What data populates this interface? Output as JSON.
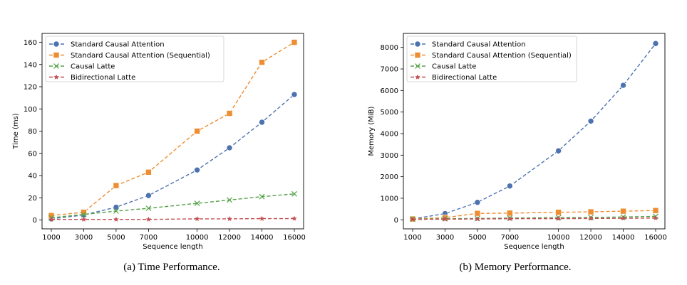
{
  "chart_data": [
    {
      "type": "line",
      "id": "a",
      "title": "",
      "caption": "(a) Time Performance.",
      "xlabel": "Sequence length",
      "ylabel": "Time (ms)",
      "x": [
        1000,
        3000,
        5000,
        7000,
        10000,
        12000,
        14000,
        16000
      ],
      "xticks": [
        "1000",
        "3000",
        "5000",
        "7000",
        "10000",
        "12000",
        "14000",
        "16000"
      ],
      "yticks": [
        0,
        20,
        40,
        60,
        80,
        100,
        120,
        140,
        160
      ],
      "ylim": [
        -8,
        168
      ],
      "xlim": [
        0,
        17000
      ],
      "grid": false,
      "legend_position": "top-left",
      "series": [
        {
          "name": "Standard Causal Attention",
          "color": "#4c72b0",
          "marker": "circle",
          "values": [
            1,
            4.5,
            11.5,
            22,
            45,
            65,
            88,
            113
          ]
        },
        {
          "name": "Standard Causal Attention (Sequential)",
          "color": "#ee8e32",
          "marker": "square",
          "values": [
            4,
            7,
            31,
            43,
            80,
            96,
            142,
            160
          ]
        },
        {
          "name": "Causal Latte",
          "color": "#55a148",
          "marker": "x",
          "values": [
            2,
            5,
            8,
            10.5,
            15,
            18,
            21,
            23.5
          ]
        },
        {
          "name": "Bidirectional Latte",
          "color": "#c44e52",
          "marker": "star",
          "values": [
            0.5,
            0.5,
            0.5,
            0.5,
            1,
            1,
            1.2,
            1.3
          ]
        }
      ]
    },
    {
      "type": "line",
      "id": "b",
      "title": "",
      "caption": "(b) Memory Performance.",
      "xlabel": "Sequence length",
      "ylabel": "Memory (MiB)",
      "x": [
        1000,
        3000,
        5000,
        7000,
        10000,
        12000,
        14000,
        16000
      ],
      "xticks": [
        "1000",
        "3000",
        "5000",
        "7000",
        "10000",
        "12000",
        "14000",
        "16000"
      ],
      "yticks": [
        0,
        1000,
        2000,
        3000,
        4000,
        5000,
        6000,
        7000,
        8000
      ],
      "ylim": [
        -420,
        8650
      ],
      "xlim": [
        0,
        17000
      ],
      "grid": false,
      "legend_position": "top-left",
      "series": [
        {
          "name": "Standard Causal Attention",
          "color": "#4c72b0",
          "marker": "circle",
          "values": [
            40,
            290,
            810,
            1570,
            3200,
            4580,
            6240,
            8180
          ]
        },
        {
          "name": "Standard Causal Attention (Sequential)",
          "color": "#ee8e32",
          "marker": "square",
          "values": [
            40,
            100,
            300,
            310,
            350,
            370,
            400,
            430
          ]
        },
        {
          "name": "Causal Latte",
          "color": "#55a148",
          "marker": "x",
          "values": [
            30,
            50,
            60,
            80,
            100,
            110,
            130,
            160
          ]
        },
        {
          "name": "Bidirectional Latte",
          "color": "#c44e52",
          "marker": "star",
          "values": [
            20,
            30,
            40,
            50,
            55,
            60,
            70,
            80
          ]
        }
      ]
    }
  ]
}
